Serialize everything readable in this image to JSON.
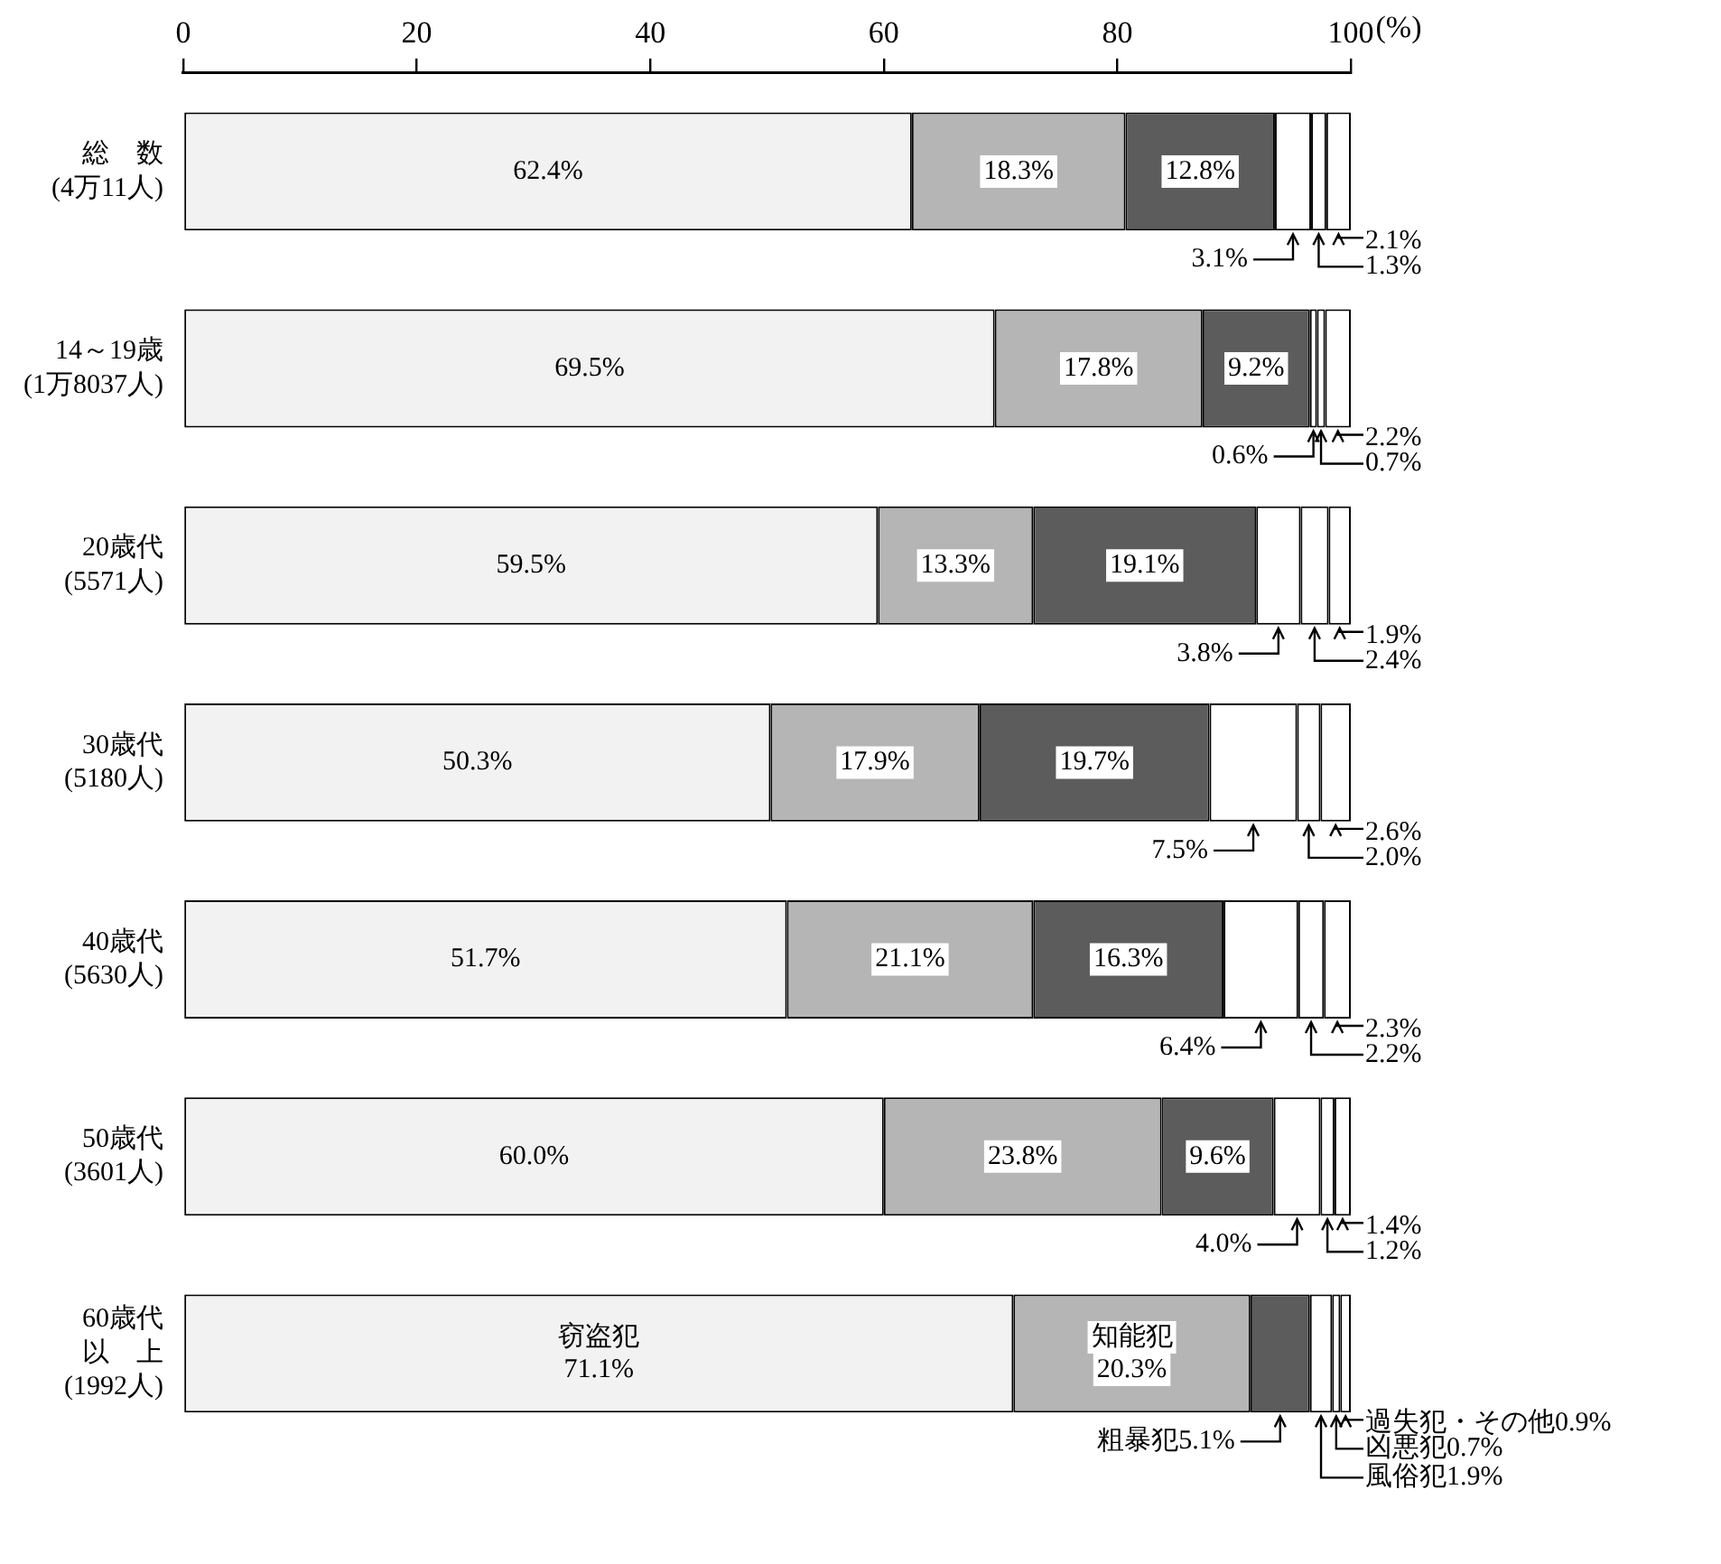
{
  "chart_data": {
    "type": "bar",
    "orientation": "horizontal",
    "stacked": true,
    "xlabel": "(%)",
    "xlim": [
      0,
      100
    ],
    "xticks": [
      0,
      20,
      40,
      60,
      80,
      100
    ],
    "grid": false,
    "legend": false,
    "categories": [
      "総　数\n(4万11人)",
      "14～19歳\n(1万8037人)",
      "20歳代\n(5571人)",
      "30歳代\n(5180人)",
      "40歳代\n(5630人)",
      "50歳代\n(3601人)",
      "60歳代以　上\n(1992人)"
    ],
    "series": [
      {
        "name": "窃盗犯",
        "color": "#f2f2f2",
        "values": [
          62.4,
          69.5,
          59.5,
          50.3,
          51.7,
          60.0,
          71.1
        ],
        "value_labels": [
          "62.4%",
          "69.5%",
          "59.5%",
          "50.3%",
          "51.7%",
          "60.0%",
          "71.1%"
        ]
      },
      {
        "name": "知能犯",
        "color": "#b5b5b5",
        "values": [
          18.3,
          17.8,
          13.3,
          17.9,
          21.1,
          23.8,
          20.3
        ],
        "value_labels": [
          "18.3%",
          "17.8%",
          "13.3%",
          "17.9%",
          "21.1%",
          "23.8%",
          "20.3%"
        ]
      },
      {
        "name": "粗暴犯",
        "color": "#5c5c5c",
        "values": [
          12.8,
          9.2,
          19.1,
          19.7,
          16.3,
          9.6,
          5.1
        ],
        "value_labels": [
          "12.8%",
          "9.2%",
          "19.1%",
          "19.7%",
          "16.3%",
          "9.6%",
          "5.1%"
        ]
      },
      {
        "name": "風俗犯",
        "color": "#ffffff",
        "values": [
          3.1,
          0.6,
          3.8,
          7.5,
          6.4,
          4.0,
          1.9
        ],
        "value_labels": [
          "3.1%",
          "0.6%",
          "3.8%",
          "7.5%",
          "6.4%",
          "4.0%",
          "1.9%"
        ]
      },
      {
        "name": "凶悪犯",
        "color": "#ffffff",
        "values": [
          1.3,
          0.7,
          2.4,
          2.0,
          2.2,
          1.2,
          0.7
        ],
        "value_labels": [
          "1.3%",
          "0.7%",
          "2.4%",
          "2.0%",
          "2.2%",
          "1.2%",
          "0.7%"
        ]
      },
      {
        "name": "過失犯・その他",
        "color": "#ffffff",
        "values": [
          2.1,
          2.2,
          1.9,
          2.6,
          2.3,
          1.4,
          0.9
        ],
        "value_labels": [
          "2.1%",
          "2.2%",
          "1.9%",
          "2.6%",
          "2.3%",
          "1.4%",
          "0.9%"
        ]
      }
    ]
  }
}
